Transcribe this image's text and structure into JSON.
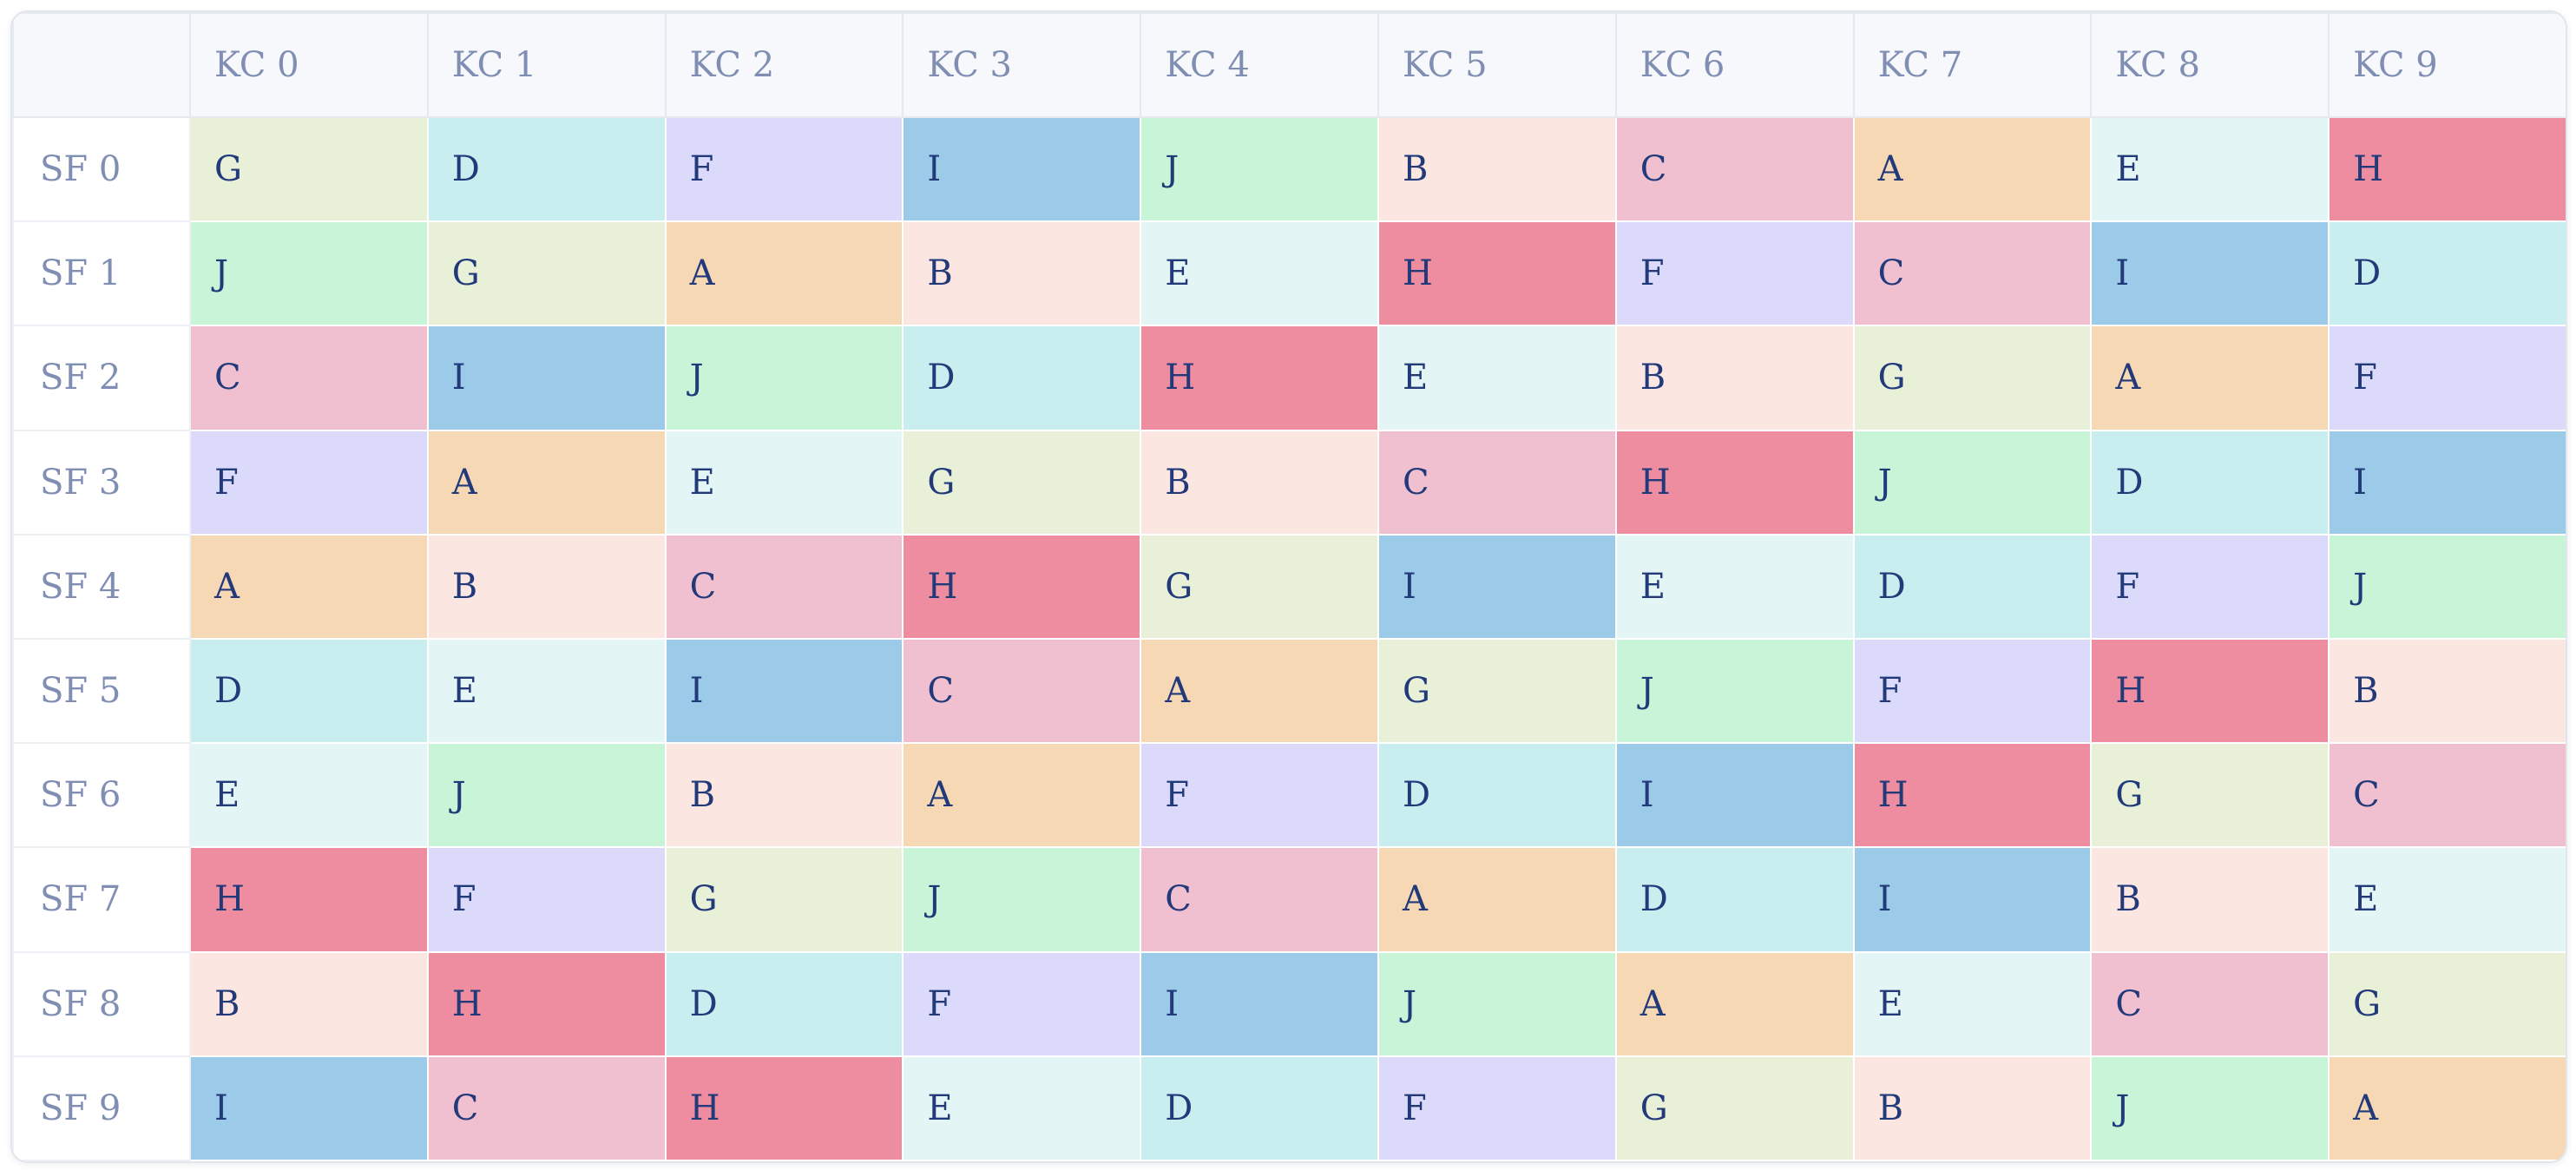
{
  "table": {
    "columns": [
      "KC 0",
      "KC 1",
      "KC 2",
      "KC 3",
      "KC 4",
      "KC 5",
      "KC 6",
      "KC 7",
      "KC 8",
      "KC 9"
    ],
    "rows": [
      {
        "label": "SF 0",
        "cells": [
          "G",
          "D",
          "F",
          "I",
          "J",
          "B",
          "C",
          "A",
          "E",
          "H"
        ]
      },
      {
        "label": "SF 1",
        "cells": [
          "J",
          "G",
          "A",
          "B",
          "E",
          "H",
          "F",
          "C",
          "I",
          "D"
        ]
      },
      {
        "label": "SF 2",
        "cells": [
          "C",
          "I",
          "J",
          "D",
          "H",
          "E",
          "B",
          "G",
          "A",
          "F"
        ]
      },
      {
        "label": "SF 3",
        "cells": [
          "F",
          "A",
          "E",
          "G",
          "B",
          "C",
          "H",
          "J",
          "D",
          "I"
        ]
      },
      {
        "label": "SF 4",
        "cells": [
          "A",
          "B",
          "C",
          "H",
          "G",
          "I",
          "E",
          "D",
          "F",
          "J"
        ]
      },
      {
        "label": "SF 5",
        "cells": [
          "D",
          "E",
          "I",
          "C",
          "A",
          "G",
          "J",
          "F",
          "H",
          "B"
        ]
      },
      {
        "label": "SF 6",
        "cells": [
          "E",
          "J",
          "B",
          "A",
          "F",
          "D",
          "I",
          "H",
          "G",
          "C"
        ]
      },
      {
        "label": "SF 7",
        "cells": [
          "H",
          "F",
          "G",
          "J",
          "C",
          "A",
          "D",
          "I",
          "B",
          "E"
        ]
      },
      {
        "label": "SF 8",
        "cells": [
          "B",
          "H",
          "D",
          "F",
          "I",
          "J",
          "A",
          "E",
          "C",
          "G"
        ]
      },
      {
        "label": "SF 9",
        "cells": [
          "I",
          "C",
          "H",
          "E",
          "D",
          "F",
          "G",
          "B",
          "J",
          "A"
        ]
      }
    ]
  },
  "letter_colors": {
    "A": "#f7d8b4",
    "B": "#fce6e1",
    "C": "#f0bfd0",
    "D": "#c8eef0",
    "E": "#e3f5f4",
    "F": "#dcdafa",
    "G": "#e8f1d8",
    "H": "#ef8da0",
    "I": "#9bcbe8",
    "J": "#c8f4d8"
  },
  "header_color": "#f7f8fc",
  "label_color": "#7f8eb2",
  "cell_text_color": "#223a7a"
}
